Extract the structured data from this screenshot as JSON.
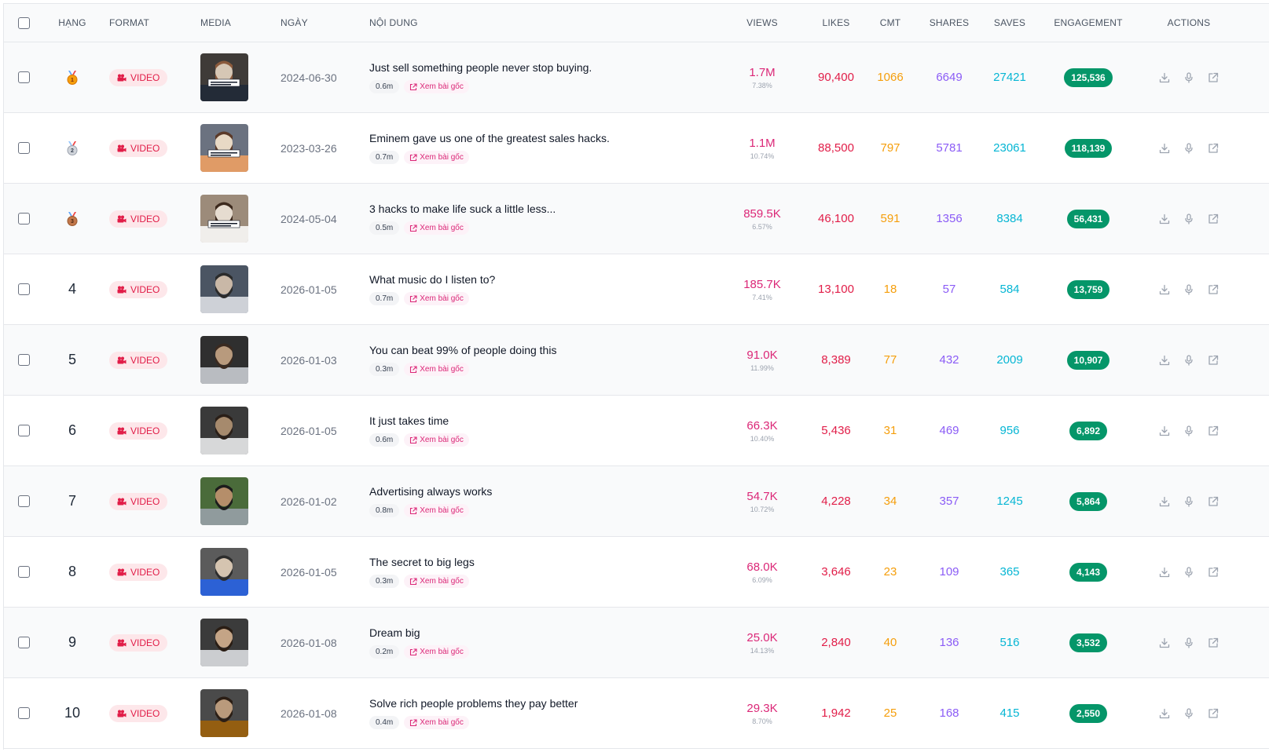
{
  "colors": {
    "views": "#db2777",
    "likes": "#e11d48",
    "cmt": "#f59e0b",
    "shares": "#8b5cf6",
    "saves": "#06b6d4",
    "engagement": "#059669",
    "format_badge_bg": "#fde7ea",
    "format_badge_text": "#e11d48"
  },
  "header": {
    "rank": "HẠNG",
    "format": "FORMAT",
    "media": "MEDIA",
    "date": "NGÀY",
    "content": "NỘI DUNG",
    "views": "VIEWS",
    "likes": "LIKES",
    "cmt": "CMT",
    "shares": "SHARES",
    "saves": "SAVES",
    "engagement": "ENGAGEMENT",
    "actions": "ACTIONS"
  },
  "icons": {
    "format": "video-camera-icon",
    "link": "external-link-icon",
    "actions": [
      "download-icon",
      "microphone-icon",
      "open-external-icon"
    ]
  },
  "rows": [
    {
      "rank": "1",
      "medal": "gold",
      "format": "VIDEO",
      "date": "2024-06-30",
      "caption": "Just sell something people never stop buying.",
      "duration": "0.6m",
      "link_label": "Xem bài gốc",
      "views": "1.7M",
      "rate": "7.38%",
      "likes": "90,400",
      "cmt": "1066",
      "shares": "6649",
      "saves": "27421",
      "engagement": "125,536"
    },
    {
      "rank": "2",
      "medal": "silver",
      "format": "VIDEO",
      "date": "2023-03-26",
      "caption": "Eminem gave us one of the greatest sales hacks.",
      "duration": "0.7m",
      "link_label": "Xem bài gốc",
      "views": "1.1M",
      "rate": "10.74%",
      "likes": "88,500",
      "cmt": "797",
      "shares": "5781",
      "saves": "23061",
      "engagement": "118,139"
    },
    {
      "rank": "3",
      "medal": "bronze",
      "format": "VIDEO",
      "date": "2024-05-04",
      "caption": "3 hacks to make life suck a little less...",
      "duration": "0.5m",
      "link_label": "Xem bài gốc",
      "views": "859.5K",
      "rate": "6.57%",
      "likes": "46,100",
      "cmt": "591",
      "shares": "1356",
      "saves": "8384",
      "engagement": "56,431"
    },
    {
      "rank": "4",
      "medal": "",
      "format": "VIDEO",
      "date": "2026-01-05",
      "caption": "What music do I listen to?",
      "duration": "0.7m",
      "link_label": "Xem bài gốc",
      "views": "185.7K",
      "rate": "7.41%",
      "likes": "13,100",
      "cmt": "18",
      "shares": "57",
      "saves": "584",
      "engagement": "13,759"
    },
    {
      "rank": "5",
      "medal": "",
      "format": "VIDEO",
      "date": "2026-01-03",
      "caption": "You can beat 99% of people doing this",
      "duration": "0.3m",
      "link_label": "Xem bài gốc",
      "views": "91.0K",
      "rate": "11.99%",
      "likes": "8,389",
      "cmt": "77",
      "shares": "432",
      "saves": "2009",
      "engagement": "10,907"
    },
    {
      "rank": "6",
      "medal": "",
      "format": "VIDEO",
      "date": "2026-01-05",
      "caption": "It just takes time",
      "duration": "0.6m",
      "link_label": "Xem bài gốc",
      "views": "66.3K",
      "rate": "10.40%",
      "likes": "5,436",
      "cmt": "31",
      "shares": "469",
      "saves": "956",
      "engagement": "6,892"
    },
    {
      "rank": "7",
      "medal": "",
      "format": "VIDEO",
      "date": "2026-01-02",
      "caption": "Advertising always works",
      "duration": "0.8m",
      "link_label": "Xem bài gốc",
      "views": "54.7K",
      "rate": "10.72%",
      "likes": "4,228",
      "cmt": "34",
      "shares": "357",
      "saves": "1245",
      "engagement": "5,864"
    },
    {
      "rank": "8",
      "medal": "",
      "format": "VIDEO",
      "date": "2026-01-05",
      "caption": "The secret to big legs",
      "duration": "0.3m",
      "link_label": "Xem bài gốc",
      "views": "68.0K",
      "rate": "6.09%",
      "likes": "3,646",
      "cmt": "23",
      "shares": "109",
      "saves": "365",
      "engagement": "4,143"
    },
    {
      "rank": "9",
      "medal": "",
      "format": "VIDEO",
      "date": "2026-01-08",
      "caption": "Dream big",
      "duration": "0.2m",
      "link_label": "Xem bài gốc",
      "views": "25.0K",
      "rate": "14.13%",
      "likes": "2,840",
      "cmt": "40",
      "shares": "136",
      "saves": "516",
      "engagement": "3,532"
    },
    {
      "rank": "10",
      "medal": "",
      "format": "VIDEO",
      "date": "2026-01-08",
      "caption": "Solve rich people problems they pay better",
      "duration": "0.4m",
      "link_label": "Xem bài gốc",
      "views": "29.3K",
      "rate": "8.70%",
      "likes": "1,942",
      "cmt": "25",
      "shares": "168",
      "saves": "415",
      "engagement": "2,550"
    }
  ]
}
